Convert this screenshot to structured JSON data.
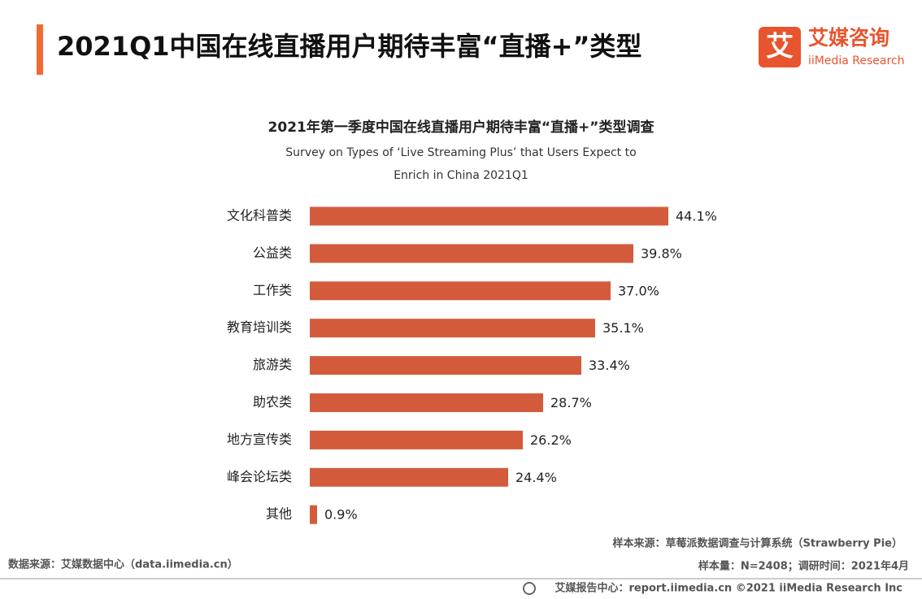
{
  "header": {
    "title": "2021Q1中国在线直播用户期待丰富“直播+”类型",
    "logo_mark": "艾",
    "logo_cn": "艾媒咨询",
    "logo_en": "iiMedia Research"
  },
  "chart_data": {
    "type": "bar",
    "orientation": "horizontal",
    "title": "2021年第一季度中国在线直播用户期待丰富“直播+”类型调查",
    "subtitle": [
      "Survey on Types of ‘Live Streaming Plus’ that Users Expect to",
      "Enrich in China 2021Q1"
    ],
    "categories": [
      "文化科普类",
      "公益类",
      "工作类",
      "教育培训类",
      "旅游类",
      "助农类",
      "地方宣传类",
      "峰会论坛类",
      "其他"
    ],
    "values": [
      44.1,
      39.8,
      37.0,
      35.1,
      33.4,
      28.7,
      26.2,
      24.4,
      0.9
    ],
    "value_labels": [
      "44.1%",
      "39.8%",
      "37.0%",
      "35.1%",
      "33.4%",
      "28.7%",
      "26.2%",
      "24.4%",
      "0.9%"
    ],
    "color": "#d35b3c"
  },
  "footer": {
    "sample_source": "样本来源：草莓派数据调查与计算系统（Strawberry Pie）",
    "sample_size": "样本量：N=2408；调研时间：2021年4月",
    "data_source": "数据来源：艾媒数据中心（data.iimedia.cn）",
    "report": "艾媒报告中心：report.iimedia.cn ©2021  iiMedia Research  Inc"
  }
}
